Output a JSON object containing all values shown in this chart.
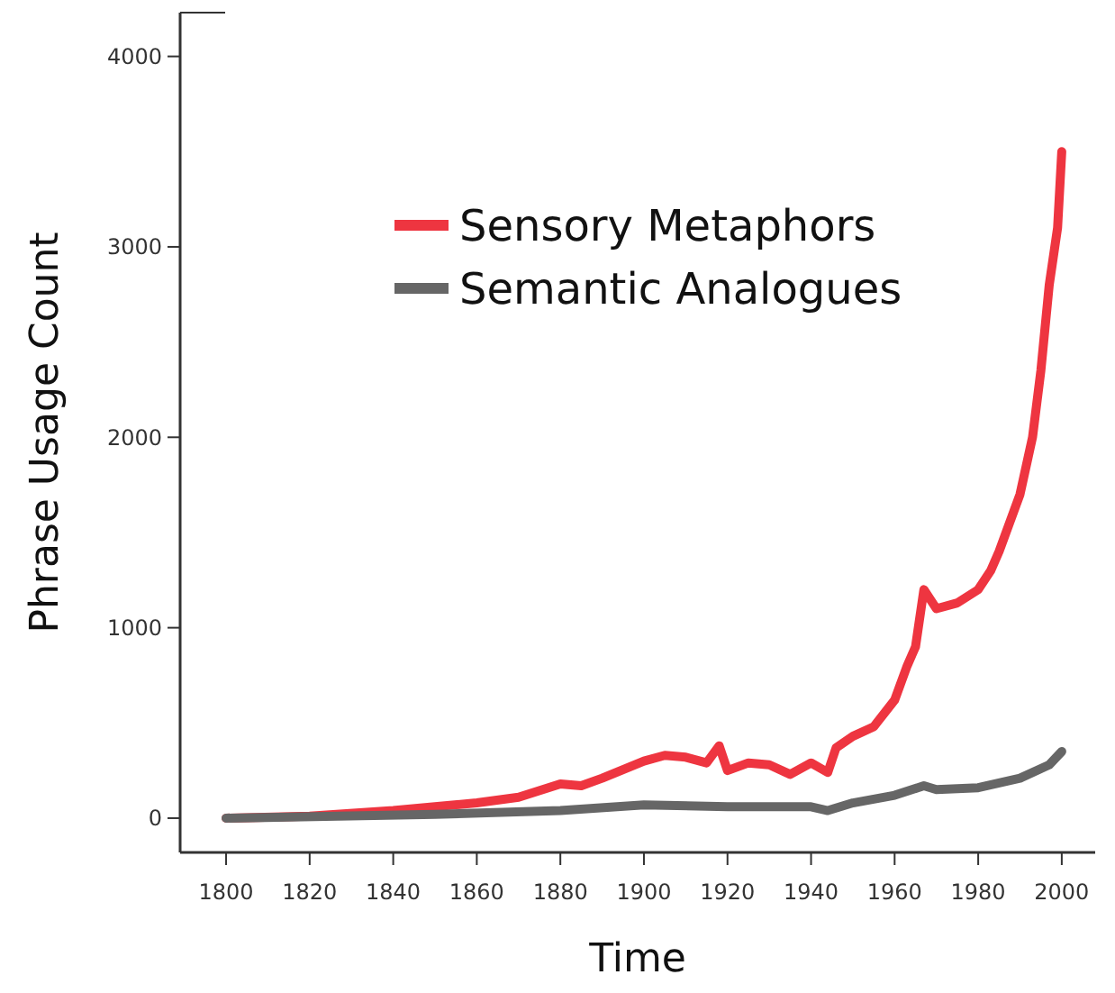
{
  "chart_data": {
    "type": "line",
    "xlabel": "Time",
    "ylabel": "Phrase Usage Count",
    "xlim": [
      1789,
      2008
    ],
    "ylim": [
      -180,
      4230
    ],
    "xticks": [
      1800,
      1820,
      1840,
      1860,
      1880,
      1900,
      1920,
      1940,
      1960,
      1980,
      2000
    ],
    "yticks": [
      0,
      1000,
      2000,
      3000,
      4000
    ],
    "grid": false,
    "legend": "top",
    "line_style": "solid",
    "series": [
      {
        "name": "Sensory Metaphors",
        "color": "#ee3540",
        "x": [
          1800,
          1820,
          1840,
          1850,
          1860,
          1870,
          1880,
          1885,
          1890,
          1900,
          1905,
          1910,
          1915,
          1918,
          1920,
          1925,
          1930,
          1935,
          1940,
          1944,
          1946,
          1950,
          1955,
          1960,
          1963,
          1965,
          1967,
          1970,
          1975,
          1980,
          1983,
          1985,
          1990,
          1993,
          1995,
          1997,
          1999,
          2000
        ],
        "values": [
          0,
          10,
          40,
          60,
          80,
          110,
          180,
          170,
          210,
          300,
          330,
          320,
          290,
          380,
          250,
          290,
          280,
          230,
          290,
          240,
          370,
          430,
          480,
          620,
          800,
          900,
          1200,
          1100,
          1130,
          1200,
          1300,
          1400,
          1700,
          2000,
          2350,
          2800,
          3100,
          3500
        ]
      },
      {
        "name": "Semantic Analogues",
        "color": "#666666",
        "x": [
          1800,
          1850,
          1880,
          1900,
          1920,
          1930,
          1940,
          1944,
          1950,
          1960,
          1967,
          1970,
          1980,
          1990,
          1997,
          2000
        ],
        "values": [
          0,
          20,
          40,
          70,
          60,
          60,
          60,
          40,
          80,
          120,
          170,
          150,
          160,
          210,
          280,
          350
        ]
      }
    ]
  }
}
